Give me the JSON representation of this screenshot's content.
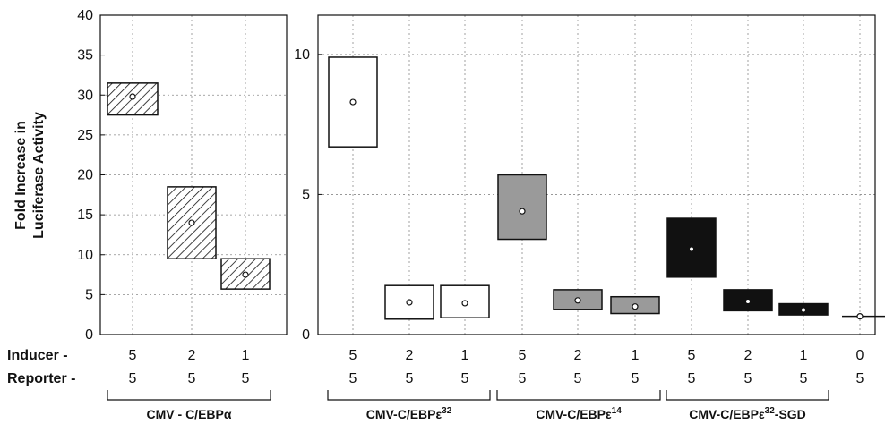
{
  "chart_data": [
    {
      "type": "box",
      "ylabel_lines": [
        "Fold Increase in",
        "Luciferase Activity"
      ],
      "ylim": [
        0,
        40
      ],
      "yticks": [
        0,
        5,
        10,
        15,
        20,
        25,
        30,
        35,
        40
      ],
      "grid": true,
      "row_labels": [
        "Inducer -",
        "Reporter -"
      ],
      "groups": [
        {
          "label": "CMV - C/EBPα",
          "label_parts": [
            {
              "t": "CMV - C/EBPα"
            }
          ],
          "first": 0,
          "last": 2
        }
      ],
      "boxes": [
        {
          "inducer": "5",
          "reporter": "5",
          "low": 27.5,
          "high": 31.5,
          "mean": 29.8,
          "fill": "hatch"
        },
        {
          "inducer": "2",
          "reporter": "5",
          "low": 9.5,
          "high": 18.5,
          "mean": 14.0,
          "fill": "hatch"
        },
        {
          "inducer": "1",
          "reporter": "5",
          "low": 5.7,
          "high": 9.5,
          "mean": 7.5,
          "fill": "hatch"
        }
      ]
    },
    {
      "type": "box",
      "ylim": [
        0,
        11.4
      ],
      "yticks": [
        0,
        5,
        10
      ],
      "grid": true,
      "groups": [
        {
          "label": "CMV-C/EBPε32",
          "label_parts": [
            {
              "t": "CMV-C/EBPε"
            },
            {
              "t": "32",
              "sup": true
            }
          ],
          "first": 0,
          "last": 2
        },
        {
          "label": "CMV-C/EBPε14",
          "label_parts": [
            {
              "t": "CMV-C/EBPε"
            },
            {
              "t": "14",
              "sup": true
            }
          ],
          "first": 3,
          "last": 5
        },
        {
          "label": "CMV-C/EBPε32-SGD",
          "label_parts": [
            {
              "t": "CMV-C/EBPε"
            },
            {
              "t": "32",
              "sup": true
            },
            {
              "t": "-SGD"
            }
          ],
          "first": 6,
          "last": 8
        }
      ],
      "boxes": [
        {
          "inducer": "5",
          "reporter": "5",
          "low": 6.7,
          "high": 9.9,
          "mean": 8.3,
          "fill": "white"
        },
        {
          "inducer": "2",
          "reporter": "5",
          "low": 0.55,
          "high": 1.75,
          "mean": 1.15,
          "fill": "white"
        },
        {
          "inducer": "1",
          "reporter": "5",
          "low": 0.6,
          "high": 1.75,
          "mean": 1.12,
          "fill": "white"
        },
        {
          "inducer": "5",
          "reporter": "5",
          "low": 3.4,
          "high": 5.7,
          "mean": 4.4,
          "fill": "gray"
        },
        {
          "inducer": "2",
          "reporter": "5",
          "low": 0.9,
          "high": 1.6,
          "mean": 1.22,
          "fill": "gray"
        },
        {
          "inducer": "1",
          "reporter": "5",
          "low": 0.75,
          "high": 1.35,
          "mean": 1.0,
          "fill": "gray"
        },
        {
          "inducer": "5",
          "reporter": "5",
          "low": 2.05,
          "high": 4.15,
          "mean": 3.05,
          "fill": "black"
        },
        {
          "inducer": "2",
          "reporter": "5",
          "low": 0.85,
          "high": 1.6,
          "mean": 1.18,
          "fill": "black"
        },
        {
          "inducer": "1",
          "reporter": "5",
          "low": 0.7,
          "high": 1.1,
          "mean": 0.88,
          "fill": "black"
        },
        {
          "inducer": "0",
          "reporter": "5",
          "low": 0.62,
          "high": 0.68,
          "mean": 0.65,
          "fill": "line"
        }
      ]
    }
  ],
  "colors": {
    "gray": "#9a9a9a",
    "black": "#111111",
    "white": "#ffffff",
    "grid": "#8a8a8a",
    "axis": "#111111"
  }
}
